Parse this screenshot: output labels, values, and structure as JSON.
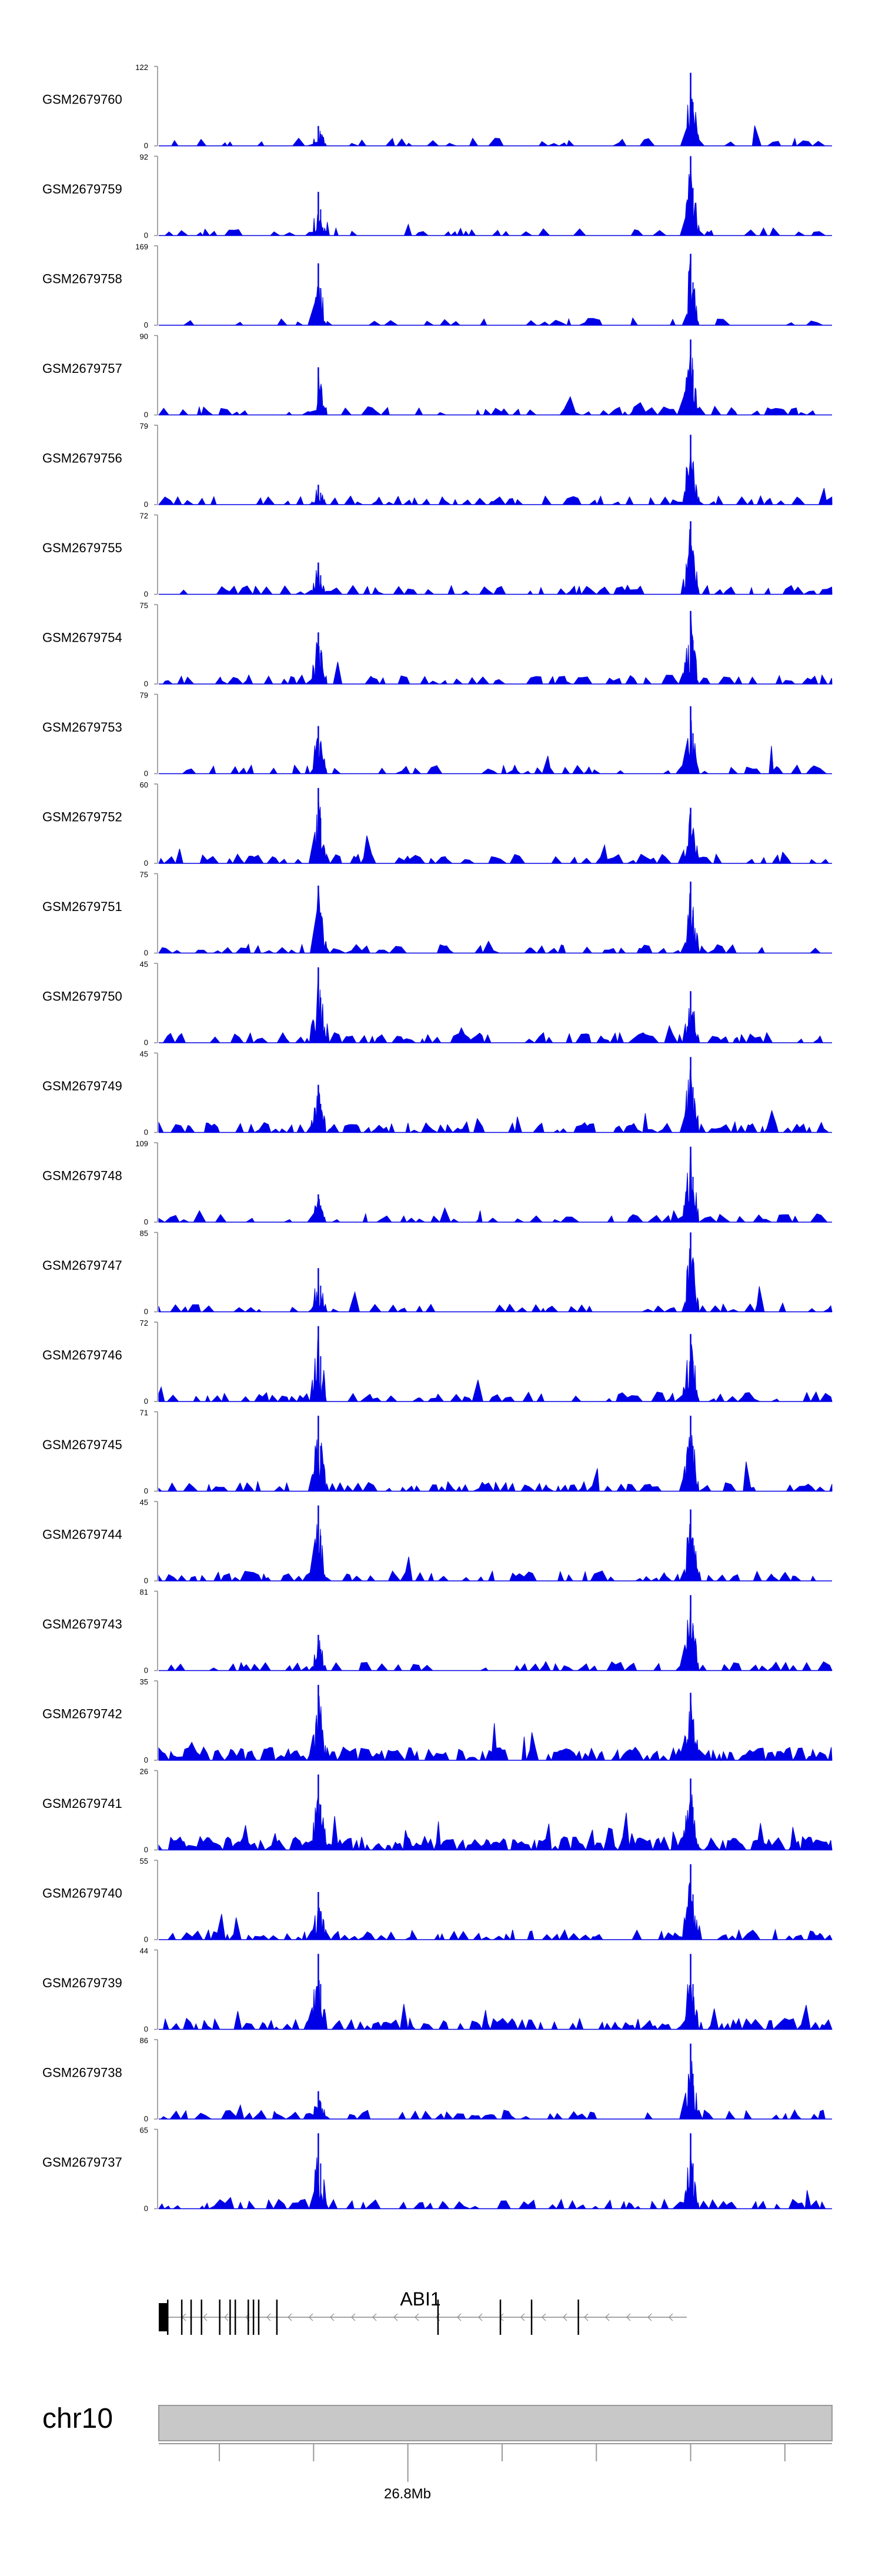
{
  "chart_data": {
    "type": "area",
    "color": "#0000e6",
    "description_axis_note": "coverage tracks over ABI1 locus",
    "tracks": [
      {
        "name": "GSM2679760",
        "max": "122",
        "min": "0",
        "peakA": 0.25,
        "peakB": 0.92,
        "density": 0.22
      },
      {
        "name": "GSM2679759",
        "max": "92",
        "min": "0",
        "peakA": 0.55,
        "peakB": 1.0,
        "density": 0.25
      },
      {
        "name": "GSM2679758",
        "max": "169",
        "min": "0",
        "peakA": 0.78,
        "peakB": 0.9,
        "density": 0.18
      },
      {
        "name": "GSM2679757",
        "max": "90",
        "min": "0",
        "peakA": 0.6,
        "peakB": 0.95,
        "density": 0.3
      },
      {
        "name": "GSM2679756",
        "max": "79",
        "min": "0",
        "peakA": 0.25,
        "peakB": 0.88,
        "density": 0.32
      },
      {
        "name": "GSM2679755",
        "max": "72",
        "min": "0",
        "peakA": 0.4,
        "peakB": 0.92,
        "density": 0.35
      },
      {
        "name": "GSM2679754",
        "max": "75",
        "min": "0",
        "peakA": 0.65,
        "peakB": 0.92,
        "density": 0.35
      },
      {
        "name": "GSM2679753",
        "max": "79",
        "min": "0",
        "peakA": 0.6,
        "peakB": 0.85,
        "density": 0.3
      },
      {
        "name": "GSM2679752",
        "max": "60",
        "min": "0",
        "peakA": 0.95,
        "peakB": 0.7,
        "density": 0.38
      },
      {
        "name": "GSM2679751",
        "max": "75",
        "min": "0",
        "peakA": 0.85,
        "peakB": 0.9,
        "density": 0.32
      },
      {
        "name": "GSM2679750",
        "max": "45",
        "min": "0",
        "peakA": 0.95,
        "peakB": 0.65,
        "density": 0.45
      },
      {
        "name": "GSM2679749",
        "max": "45",
        "min": "0",
        "peakA": 0.6,
        "peakB": 0.95,
        "density": 0.5
      },
      {
        "name": "GSM2679748",
        "max": "109",
        "min": "0",
        "peakA": 0.35,
        "peakB": 0.95,
        "density": 0.3
      },
      {
        "name": "GSM2679747",
        "max": "85",
        "min": "0",
        "peakA": 0.55,
        "peakB": 1.0,
        "density": 0.32
      },
      {
        "name": "GSM2679746",
        "max": "72",
        "min": "0",
        "peakA": 0.95,
        "peakB": 0.85,
        "density": 0.4
      },
      {
        "name": "GSM2679745",
        "max": "71",
        "min": "0",
        "peakA": 0.95,
        "peakB": 0.95,
        "density": 0.4
      },
      {
        "name": "GSM2679744",
        "max": "45",
        "min": "0",
        "peakA": 0.95,
        "peakB": 0.9,
        "density": 0.45
      },
      {
        "name": "GSM2679743",
        "max": "81",
        "min": "0",
        "peakA": 0.45,
        "peakB": 0.95,
        "density": 0.35
      },
      {
        "name": "GSM2679742",
        "max": "35",
        "min": "0",
        "peakA": 0.95,
        "peakB": 0.85,
        "density": 0.75
      },
      {
        "name": "GSM2679741",
        "max": "26",
        "min": "0",
        "peakA": 0.95,
        "peakB": 0.9,
        "density": 0.8
      },
      {
        "name": "GSM2679740",
        "max": "55",
        "min": "0",
        "peakA": 0.6,
        "peakB": 0.95,
        "density": 0.45
      },
      {
        "name": "GSM2679739",
        "max": "44",
        "min": "0",
        "peakA": 0.95,
        "peakB": 0.95,
        "density": 0.55
      },
      {
        "name": "GSM2679738",
        "max": "86",
        "min": "0",
        "peakA": 0.35,
        "peakB": 0.95,
        "density": 0.35
      },
      {
        "name": "GSM2679737",
        "max": "65",
        "min": "0",
        "peakA": 0.95,
        "peakB": 0.95,
        "density": 0.4
      }
    ],
    "gene": {
      "name": "ABI1",
      "strand": "-",
      "exons": [
        0.0,
        0.027,
        0.045,
        0.065,
        0.1,
        0.12,
        0.13,
        0.155,
        0.165,
        0.175,
        0.21,
        0.52,
        0.64,
        0.7,
        0.79
      ]
    },
    "chromosome": {
      "name": "chr10",
      "tick_label": "26.8Mb",
      "labeled_tick_fraction": 0.37,
      "tick_fractions": [
        0.09,
        0.23,
        0.37,
        0.51,
        0.65,
        0.79,
        0.93
      ]
    }
  }
}
